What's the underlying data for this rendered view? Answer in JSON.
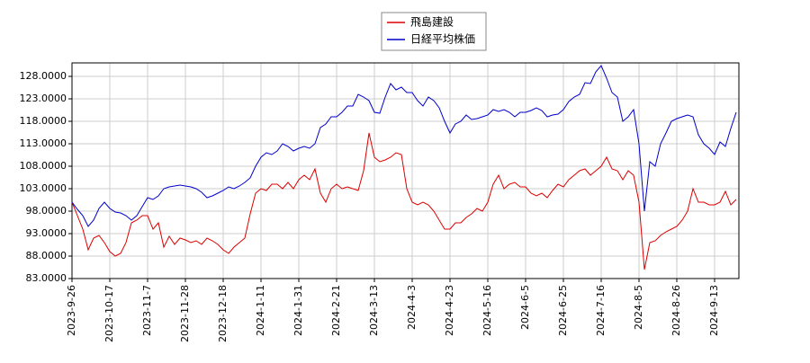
{
  "chart_data": {
    "type": "line",
    "categories": [
      "2023-9-26",
      null,
      null,
      null,
      null,
      null,
      null,
      "2023-10-17",
      null,
      null,
      null,
      null,
      null,
      null,
      "2023-11-7",
      null,
      null,
      null,
      null,
      null,
      null,
      "2023-11-28",
      null,
      null,
      null,
      null,
      null,
      null,
      "2023-12-18",
      null,
      null,
      null,
      null,
      null,
      null,
      "2024-1-11",
      null,
      null,
      null,
      null,
      null,
      null,
      "2024-1-31",
      null,
      null,
      null,
      null,
      null,
      null,
      "2024-2-21",
      null,
      null,
      null,
      null,
      null,
      null,
      "2024-3-13",
      null,
      null,
      null,
      null,
      null,
      null,
      "2024-4-3",
      null,
      null,
      null,
      null,
      null,
      null,
      "2024-4-23",
      null,
      null,
      null,
      null,
      null,
      null,
      "2024-5-16",
      null,
      null,
      null,
      null,
      null,
      null,
      "2024-6-5",
      null,
      null,
      null,
      null,
      null,
      null,
      "2024-6-25",
      null,
      null,
      null,
      null,
      null,
      null,
      "2024-7-16",
      null,
      null,
      null,
      null,
      null,
      null,
      "2024-8-5",
      null,
      null,
      null,
      null,
      null,
      null,
      "2024-8-26",
      null,
      null,
      null,
      null,
      null,
      null,
      "2024-9-13",
      null,
      null,
      null,
      null
    ],
    "series": [
      {
        "name": "飛島建設",
        "color": "#dd0000",
        "values": [
          100,
          97,
          94,
          89.4,
          92,
          92.6,
          91,
          89,
          88,
          88.6,
          91,
          95.4,
          96,
          97,
          97,
          94,
          95.4,
          90,
          92.4,
          90.6,
          92,
          91.6,
          91,
          91.4,
          90.6,
          92,
          91.4,
          90.6,
          89.4,
          88.6,
          90,
          91,
          92,
          97.4,
          102,
          103,
          102.6,
          104,
          104,
          103,
          104.4,
          103,
          105,
          106,
          105,
          107.4,
          102,
          100,
          103,
          104,
          103,
          103.4,
          103,
          102.6,
          107,
          115.4,
          110,
          109,
          109.4,
          110,
          111,
          110.6,
          103,
          100,
          99.4,
          100,
          99.4,
          98,
          96,
          94,
          94,
          95.4,
          95.4,
          96.6,
          97.4,
          98.6,
          98,
          100,
          104,
          106,
          103,
          104,
          104.4,
          103.4,
          103.4,
          102,
          101.4,
          102,
          101,
          102.6,
          104,
          103.4,
          105,
          106,
          107,
          107.4,
          106,
          107,
          108,
          110,
          107.4,
          107,
          105,
          107,
          106,
          100,
          85,
          91,
          91.4,
          92.6,
          93.4,
          94,
          94.6,
          96,
          98,
          103,
          100,
          100,
          99.4,
          99.4,
          100,
          102.4,
          99.4,
          100.6
        ]
      },
      {
        "name": "日経平均株価",
        "color": "#0000cc",
        "values": [
          100,
          98.4,
          97,
          94.6,
          96,
          98.6,
          100,
          98.6,
          97.8,
          97.6,
          97,
          96,
          97,
          99,
          101,
          100.6,
          101.4,
          103,
          103.4,
          103.6,
          103.8,
          103.6,
          103.4,
          103,
          102.2,
          101,
          101.4,
          102,
          102.6,
          103.4,
          103,
          103.6,
          104.4,
          105.4,
          108,
          110,
          111,
          110.6,
          111.4,
          113,
          112.4,
          111.4,
          112,
          112.4,
          112,
          113,
          116.6,
          117.4,
          119,
          119,
          120,
          121.4,
          121.4,
          124,
          123.4,
          122.6,
          120,
          119.8,
          123.4,
          126.4,
          125,
          125.6,
          124.4,
          124.4,
          122.6,
          121.4,
          123.4,
          122.6,
          121,
          118,
          115.4,
          117.4,
          118,
          119.4,
          118.4,
          118.6,
          119,
          119.4,
          120.6,
          120.2,
          120.6,
          120,
          119,
          120,
          120,
          120.4,
          121,
          120.4,
          119,
          119.4,
          119.6,
          120.6,
          122.4,
          123.4,
          124,
          126.6,
          126.4,
          129,
          130.4,
          127.6,
          124.4,
          123.4,
          118,
          119,
          120.6,
          113,
          98,
          109,
          108,
          113,
          115.4,
          118,
          118.6,
          119,
          119.4,
          119,
          115,
          113,
          112,
          110.6,
          113.4,
          112.4,
          116.4,
          120
        ]
      }
    ],
    "ylim": [
      83,
      131
    ],
    "yticks": [
      {
        "value": 83,
        "label": "83.0000"
      },
      {
        "value": 88,
        "label": "88.0000"
      },
      {
        "value": 93,
        "label": "93.0000"
      },
      {
        "value": 98,
        "label": "98.0000"
      },
      {
        "value": 103,
        "label": "103.0000"
      },
      {
        "value": 108,
        "label": "108.0000"
      },
      {
        "value": 113,
        "label": "113.0000"
      },
      {
        "value": 118,
        "label": "118.0000"
      },
      {
        "value": 123,
        "label": "123.0000"
      },
      {
        "value": 128,
        "label": "128.0000"
      }
    ],
    "grid": true,
    "legend": "top"
  }
}
